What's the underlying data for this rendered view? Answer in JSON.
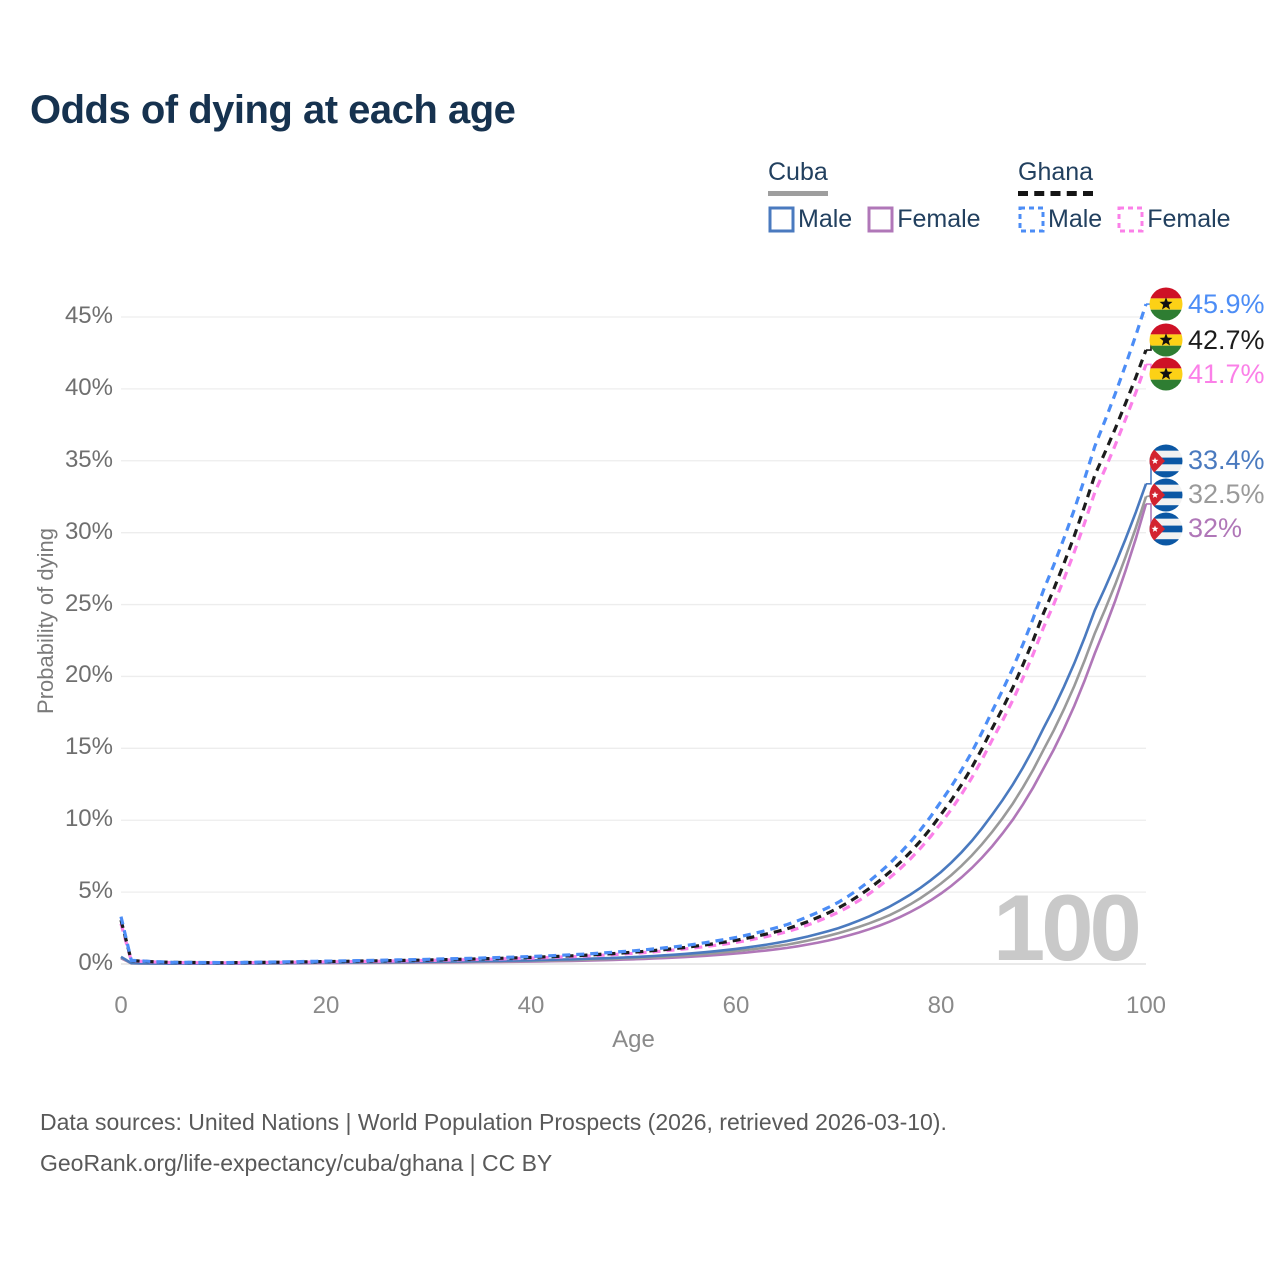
{
  "title": "Odds of dying at each age",
  "watermark": "100",
  "legend": {
    "groups": [
      {
        "country": "Cuba",
        "line_style": "solid",
        "line_color": "#9e9e9e",
        "items": [
          {
            "label": "Male",
            "color": "#4a7abf",
            "dashed": false
          },
          {
            "label": "Female",
            "color": "#b077b8",
            "dashed": false
          }
        ]
      },
      {
        "country": "Ghana",
        "line_style": "dashed",
        "line_color": "#151515",
        "items": [
          {
            "label": "Male",
            "color": "#4c8df6",
            "dashed": true
          },
          {
            "label": "Female",
            "color": "#fb80e8",
            "dashed": true
          }
        ]
      }
    ]
  },
  "footer": {
    "line1": "Data sources: United Nations | World Population Prospects (2026, retrieved 2026-03-10).",
    "line2": "GeoRank.org/life-expectancy/cuba/ghana | CC BY"
  },
  "chart_data": {
    "type": "line",
    "title": "Odds of dying at each age",
    "xlabel": "Age",
    "ylabel": "Probability of dying",
    "xlim": [
      0,
      100
    ],
    "ylim": [
      0,
      47
    ],
    "grid": "horizontal",
    "legend_position": "top-right",
    "x_ticks": [
      0,
      20,
      40,
      60,
      80,
      100
    ],
    "x_tick_labels": [
      "0",
      "20",
      "40",
      "60",
      "80",
      "100"
    ],
    "y_ticks": [
      0,
      5,
      10,
      15,
      20,
      25,
      30,
      35,
      40,
      45
    ],
    "y_tick_labels": [
      "0%",
      "5%",
      "10%",
      "15%",
      "20%",
      "25%",
      "30%",
      "35%",
      "40%",
      "45%"
    ],
    "x": [
      0,
      1,
      5,
      10,
      15,
      20,
      25,
      30,
      35,
      40,
      45,
      50,
      55,
      60,
      65,
      70,
      75,
      80,
      85,
      90,
      95,
      100
    ],
    "series": [
      {
        "id": "ghana-male",
        "name": "Ghana Male",
        "country": "Ghana",
        "sex": "Male",
        "color": "#4c8df6",
        "dashed": true,
        "flag": "ghana",
        "end_label": "45.9%",
        "values": [
          3.3,
          0.26,
          0.12,
          0.1,
          0.14,
          0.2,
          0.26,
          0.33,
          0.41,
          0.52,
          0.68,
          0.92,
          1.28,
          1.85,
          2.75,
          4.3,
          7.0,
          11.3,
          17.6,
          26.0,
          36.0,
          45.9
        ]
      },
      {
        "id": "ghana-both",
        "name": "Ghana Both sexes",
        "country": "Ghana",
        "sex": "Both",
        "color": "#1c1c1c",
        "dashed": true,
        "flag": "ghana",
        "end_label": "42.7%",
        "values": [
          3.05,
          0.24,
          0.11,
          0.09,
          0.12,
          0.17,
          0.22,
          0.28,
          0.36,
          0.46,
          0.6,
          0.82,
          1.15,
          1.65,
          2.45,
          3.9,
          6.4,
          10.4,
          16.4,
          24.4,
          34.0,
          42.7
        ]
      },
      {
        "id": "ghana-female",
        "name": "Ghana Female",
        "country": "Ghana",
        "sex": "Female",
        "color": "#fb80e8",
        "dashed": true,
        "flag": "ghana",
        "end_label": "41.7%",
        "values": [
          2.8,
          0.22,
          0.1,
          0.08,
          0.11,
          0.15,
          0.19,
          0.25,
          0.32,
          0.41,
          0.54,
          0.74,
          1.05,
          1.5,
          2.25,
          3.6,
          6.0,
          9.8,
          15.6,
          23.4,
          32.8,
          41.7
        ]
      },
      {
        "id": "cuba-male",
        "name": "Cuba Male",
        "country": "Cuba",
        "sex": "Male",
        "color": "#4a7abf",
        "dashed": false,
        "flag": "cuba",
        "end_label": "33.4%",
        "values": [
          0.5,
          0.06,
          0.03,
          0.03,
          0.06,
          0.1,
          0.13,
          0.16,
          0.2,
          0.26,
          0.35,
          0.48,
          0.7,
          1.05,
          1.6,
          2.5,
          4.0,
          6.4,
          10.4,
          16.4,
          24.6,
          33.4
        ]
      },
      {
        "id": "cuba-both",
        "name": "Cuba Both sexes",
        "country": "Cuba",
        "sex": "Both",
        "color": "#9a9a9a",
        "dashed": false,
        "flag": "cuba",
        "end_label": "32.5%",
        "values": [
          0.45,
          0.05,
          0.03,
          0.03,
          0.05,
          0.08,
          0.1,
          0.13,
          0.17,
          0.22,
          0.29,
          0.41,
          0.59,
          0.9,
          1.35,
          2.15,
          3.4,
          5.6,
          9.2,
          14.9,
          23.0,
          32.5
        ]
      },
      {
        "id": "cuba-female",
        "name": "Cuba Female",
        "country": "Cuba",
        "sex": "Female",
        "color": "#b077b8",
        "dashed": false,
        "flag": "cuba",
        "end_label": "32%",
        "values": [
          0.4,
          0.05,
          0.02,
          0.02,
          0.04,
          0.06,
          0.08,
          0.1,
          0.13,
          0.17,
          0.23,
          0.33,
          0.48,
          0.73,
          1.12,
          1.8,
          2.95,
          4.9,
          8.2,
          13.6,
          21.6,
          32.0
        ]
      }
    ]
  }
}
